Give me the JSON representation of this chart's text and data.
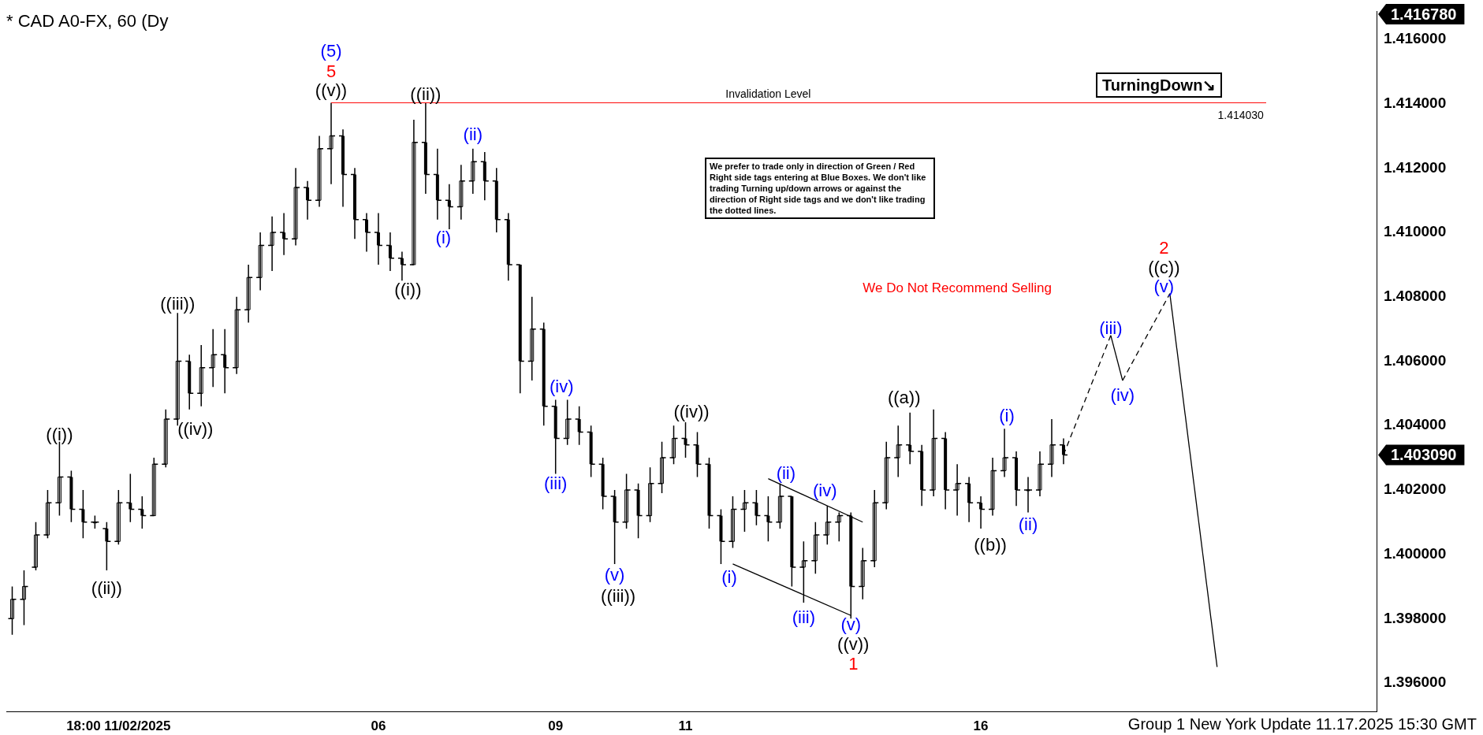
{
  "chart_data": {
    "type": "candlestick",
    "title": "* CAD A0-FX, 60 (Dy",
    "categories": [
      null,
      null,
      null,
      null,
      null,
      null,
      null,
      null,
      null,
      "18:00 11/02/2025",
      null,
      null,
      null,
      null,
      null,
      null,
      null,
      null,
      null,
      null,
      null,
      null,
      null,
      null,
      null,
      null,
      null,
      null,
      null,
      null,
      null,
      "06",
      null,
      null,
      null,
      null,
      null,
      null,
      null,
      null,
      null,
      null,
      null,
      null,
      null,
      null,
      "09",
      null,
      null,
      null,
      null,
      null,
      null,
      null,
      null,
      null,
      null,
      "11",
      null,
      null,
      null,
      null,
      null,
      null,
      null,
      null,
      null,
      null,
      null,
      null,
      null,
      null,
      null,
      null,
      null,
      null,
      null,
      null,
      null,
      null,
      null,
      null,
      "16",
      null,
      null,
      null,
      null,
      null,
      null,
      null,
      null,
      null,
      null,
      null,
      null,
      null,
      null,
      null,
      null,
      null,
      null,
      null,
      null,
      null,
      null,
      null,
      null,
      null,
      null,
      null,
      null,
      null,
      null,
      null,
      null,
      null
    ],
    "ohlc": [
      [
        1.398,
        1.399,
        1.3975,
        1.3986
      ],
      [
        1.3986,
        1.3995,
        1.3978,
        1.399
      ],
      [
        1.3996,
        1.401,
        1.3995,
        1.4006
      ],
      [
        1.4006,
        1.402,
        1.4005,
        1.4016
      ],
      [
        1.4016,
        1.4035,
        1.4012,
        1.4024
      ],
      [
        1.4024,
        1.4026,
        1.401,
        1.4014
      ],
      [
        1.4014,
        1.402,
        1.4005,
        1.401
      ],
      [
        1.401,
        1.4012,
        1.4008,
        1.401
      ],
      [
        1.4008,
        1.401,
        1.3995,
        1.4004
      ],
      [
        1.4004,
        1.402,
        1.4003,
        1.4016
      ],
      [
        1.4016,
        1.4025,
        1.401,
        1.4014
      ],
      [
        1.4014,
        1.4018,
        1.4008,
        1.4012
      ],
      [
        1.4012,
        1.403,
        1.4012,
        1.4028
      ],
      [
        1.4028,
        1.4045,
        1.4027,
        1.4042
      ],
      [
        1.4042,
        1.4075,
        1.404,
        1.406
      ],
      [
        1.406,
        1.4062,
        1.4045,
        1.405
      ],
      [
        1.405,
        1.4065,
        1.4046,
        1.4058
      ],
      [
        1.4058,
        1.407,
        1.4052,
        1.4062
      ],
      [
        1.4062,
        1.407,
        1.405,
        1.4058
      ],
      [
        1.4058,
        1.408,
        1.4056,
        1.4076
      ],
      [
        1.4076,
        1.409,
        1.4072,
        1.4086
      ],
      [
        1.4086,
        1.41,
        1.4082,
        1.4096
      ],
      [
        1.4096,
        1.4105,
        1.4088,
        1.41
      ],
      [
        1.41,
        1.4106,
        1.4093,
        1.4098
      ],
      [
        1.4098,
        1.412,
        1.4096,
        1.4114
      ],
      [
        1.4114,
        1.4116,
        1.4104,
        1.411
      ],
      [
        1.411,
        1.413,
        1.4108,
        1.4126
      ],
      [
        1.4126,
        1.41403,
        1.4115,
        1.413
      ],
      [
        1.413,
        1.4132,
        1.4108,
        1.4118
      ],
      [
        1.4118,
        1.412,
        1.4098,
        1.4104
      ],
      [
        1.4104,
        1.4106,
        1.4094,
        1.41
      ],
      [
        1.41,
        1.4106,
        1.409,
        1.4096
      ],
      [
        1.4096,
        1.41,
        1.4088,
        1.4092
      ],
      [
        1.4092,
        1.4094,
        1.4085,
        1.409
      ],
      [
        1.409,
        1.4135,
        1.409,
        1.4128
      ],
      [
        1.4128,
        1.41403,
        1.4112,
        1.4118
      ],
      [
        1.4118,
        1.4126,
        1.4104,
        1.411
      ],
      [
        1.411,
        1.4115,
        1.4101,
        1.4108
      ],
      [
        1.4108,
        1.4121,
        1.4104,
        1.4116
      ],
      [
        1.4116,
        1.4126,
        1.4112,
        1.4122
      ],
      [
        1.4122,
        1.4125,
        1.411,
        1.4116
      ],
      [
        1.4116,
        1.412,
        1.41,
        1.4104
      ],
      [
        1.4104,
        1.4106,
        1.4085,
        1.409
      ],
      [
        1.409,
        1.409,
        1.405,
        1.406
      ],
      [
        1.406,
        1.408,
        1.4054,
        1.407
      ],
      [
        1.407,
        1.4072,
        1.404,
        1.4046
      ],
      [
        1.4046,
        1.4048,
        1.4025,
        1.4036
      ],
      [
        1.4036,
        1.4048,
        1.4034,
        1.4042
      ],
      [
        1.4042,
        1.4046,
        1.4034,
        1.4038
      ],
      [
        1.4038,
        1.404,
        1.4024,
        1.4028
      ],
      [
        1.4028,
        1.403,
        1.4014,
        1.4018
      ],
      [
        1.4018,
        1.402,
        1.3997,
        1.401
      ],
      [
        1.401,
        1.4025,
        1.4008,
        1.402
      ],
      [
        1.402,
        1.4022,
        1.4005,
        1.4012
      ],
      [
        1.4012,
        1.4027,
        1.401,
        1.4022
      ],
      [
        1.4022,
        1.4035,
        1.4019,
        1.403
      ],
      [
        1.403,
        1.404,
        1.4028,
        1.4036
      ],
      [
        1.4036,
        1.4041,
        1.403,
        1.4034
      ],
      [
        1.4034,
        1.4038,
        1.4024,
        1.4028
      ],
      [
        1.4028,
        1.403,
        1.4008,
        1.4012
      ],
      [
        1.4012,
        1.4014,
        1.3997,
        1.4004
      ],
      [
        1.4004,
        1.4018,
        1.4002,
        1.4014
      ],
      [
        1.4014,
        1.402,
        1.4007,
        1.4016
      ],
      [
        1.4016,
        1.402,
        1.4009,
        1.4012
      ],
      [
        1.4012,
        1.4018,
        1.4004,
        1.401
      ],
      [
        1.401,
        1.4022,
        1.4008,
        1.4018
      ],
      [
        1.4018,
        1.4018,
        1.399,
        1.3996
      ],
      [
        1.3996,
        1.4004,
        1.3985,
        1.3998
      ],
      [
        1.3998,
        1.401,
        1.3994,
        1.4006
      ],
      [
        1.4006,
        1.4015,
        1.4003,
        1.401
      ],
      [
        1.401,
        1.4013,
        1.4004,
        1.4012
      ],
      [
        1.4012,
        1.4013,
        1.398,
        1.399
      ],
      [
        1.399,
        1.4002,
        1.3986,
        1.3998
      ],
      [
        1.3998,
        1.402,
        1.3996,
        1.4016
      ],
      [
        1.4016,
        1.4035,
        1.4014,
        1.403
      ],
      [
        1.403,
        1.404,
        1.4024,
        1.4034
      ],
      [
        1.4034,
        1.4044,
        1.4028,
        1.4032
      ],
      [
        1.4032,
        1.4034,
        1.4015,
        1.402
      ],
      [
        1.402,
        1.4045,
        1.4018,
        1.4036
      ],
      [
        1.4036,
        1.4038,
        1.4014,
        1.402
      ],
      [
        1.402,
        1.4028,
        1.4012,
        1.4022
      ],
      [
        1.4022,
        1.4024,
        1.401,
        1.4016
      ],
      [
        1.4016,
        1.4018,
        1.4008,
        1.4014
      ],
      [
        1.4014,
        1.403,
        1.4012,
        1.4026
      ],
      [
        1.4026,
        1.4039,
        1.4024,
        1.403
      ],
      [
        1.403,
        1.4032,
        1.4015,
        1.402
      ],
      [
        1.402,
        1.4024,
        1.4013,
        1.402
      ],
      [
        1.402,
        1.4032,
        1.4018,
        1.4028
      ],
      [
        1.4028,
        1.4042,
        1.4024,
        1.4034
      ],
      [
        1.4034,
        1.4036,
        1.4028,
        1.40309
      ],
      null,
      null,
      null,
      null,
      null,
      null,
      null,
      null,
      null,
      null,
      null,
      null,
      null,
      null,
      null,
      null,
      null,
      null,
      null,
      null,
      null,
      null,
      null,
      null,
      null,
      null
    ],
    "series": [
      {
        "type": "line",
        "color": "#000000",
        "line_style": "dashed",
        "values": [
          null,
          null,
          null,
          null,
          null,
          null,
          null,
          null,
          null,
          null,
          null,
          null,
          null,
          null,
          null,
          null,
          null,
          null,
          null,
          null,
          null,
          null,
          null,
          null,
          null,
          null,
          null,
          null,
          null,
          null,
          null,
          null,
          null,
          null,
          null,
          null,
          null,
          null,
          null,
          null,
          null,
          null,
          null,
          null,
          null,
          null,
          null,
          null,
          null,
          null,
          null,
          null,
          null,
          null,
          null,
          null,
          null,
          null,
          null,
          null,
          null,
          null,
          null,
          null,
          null,
          null,
          null,
          null,
          null,
          null,
          null,
          null,
          null,
          null,
          null,
          null,
          null,
          null,
          null,
          null,
          null,
          null,
          null,
          null,
          null,
          null,
          null,
          null,
          null,
          1.40309,
          null,
          null,
          null,
          1.4068,
          null,
          null,
          null,
          null,
          null,
          null,
          null,
          null,
          null,
          null,
          null,
          null,
          null,
          null,
          null,
          null,
          null,
          null,
          null,
          null,
          null,
          null
        ]
      },
      {
        "type": "line",
        "color": "#000000",
        "line_style": "solid",
        "values": [
          null,
          null,
          null,
          null,
          null,
          null,
          null,
          null,
          null,
          null,
          null,
          null,
          null,
          null,
          null,
          null,
          null,
          null,
          null,
          null,
          null,
          null,
          null,
          null,
          null,
          null,
          null,
          null,
          null,
          null,
          null,
          null,
          null,
          null,
          null,
          null,
          null,
          null,
          null,
          null,
          null,
          null,
          null,
          null,
          null,
          null,
          null,
          null,
          null,
          null,
          null,
          null,
          null,
          null,
          null,
          null,
          null,
          null,
          null,
          null,
          null,
          null,
          null,
          null,
          null,
          null,
          null,
          null,
          null,
          null,
          null,
          null,
          null,
          null,
          null,
          null,
          null,
          null,
          null,
          null,
          null,
          null,
          null,
          null,
          null,
          null,
          null,
          null,
          null,
          null,
          null,
          null,
          null,
          1.4068,
          1.4054,
          null,
          null,
          null,
          null,
          null,
          null,
          null,
          null,
          null,
          null,
          null,
          null,
          null,
          null,
          null,
          null,
          null,
          null,
          null,
          null,
          null
        ]
      },
      {
        "type": "line",
        "color": "#000000",
        "line_style": "dashed",
        "values": [
          null,
          null,
          null,
          null,
          null,
          null,
          null,
          null,
          null,
          null,
          null,
          null,
          null,
          null,
          null,
          null,
          null,
          null,
          null,
          null,
          null,
          null,
          null,
          null,
          null,
          null,
          null,
          null,
          null,
          null,
          null,
          null,
          null,
          null,
          null,
          null,
          null,
          null,
          null,
          null,
          null,
          null,
          null,
          null,
          null,
          null,
          null,
          null,
          null,
          null,
          null,
          null,
          null,
          null,
          null,
          null,
          null,
          null,
          null,
          null,
          null,
          null,
          null,
          null,
          null,
          null,
          null,
          null,
          null,
          null,
          null,
          null,
          null,
          null,
          null,
          null,
          null,
          null,
          null,
          null,
          null,
          null,
          null,
          null,
          null,
          null,
          null,
          null,
          null,
          null,
          null,
          null,
          null,
          null,
          1.4054,
          null,
          null,
          null,
          1.4081,
          null,
          null,
          null,
          null,
          null,
          null,
          null,
          null,
          null,
          null,
          null,
          null,
          null,
          null,
          null,
          null,
          null
        ]
      },
      {
        "type": "line",
        "color": "#000000",
        "line_style": "solid",
        "values": [
          null,
          null,
          null,
          null,
          null,
          null,
          null,
          null,
          null,
          null,
          null,
          null,
          null,
          null,
          null,
          null,
          null,
          null,
          null,
          null,
          null,
          null,
          null,
          null,
          null,
          null,
          null,
          null,
          null,
          null,
          null,
          null,
          null,
          null,
          null,
          null,
          null,
          null,
          null,
          null,
          null,
          null,
          null,
          null,
          null,
          null,
          null,
          null,
          null,
          null,
          null,
          null,
          null,
          null,
          null,
          null,
          null,
          null,
          null,
          null,
          null,
          null,
          null,
          null,
          null,
          null,
          null,
          null,
          null,
          null,
          null,
          null,
          null,
          null,
          null,
          null,
          null,
          null,
          null,
          null,
          null,
          null,
          null,
          null,
          null,
          null,
          null,
          null,
          null,
          null,
          null,
          null,
          null,
          null,
          null,
          null,
          null,
          null,
          1.4081,
          null,
          null,
          null,
          1.3965,
          null,
          null,
          null,
          null,
          null,
          null,
          null,
          null,
          null,
          null,
          null,
          null,
          null
        ]
      },
      {
        "type": "line",
        "color": "#000000",
        "line_style": "solid",
        "values": [
          null,
          null,
          null,
          null,
          null,
          null,
          null,
          null,
          null,
          null,
          null,
          null,
          null,
          null,
          null,
          null,
          null,
          null,
          null,
          null,
          null,
          null,
          null,
          null,
          null,
          null,
          null,
          null,
          null,
          null,
          null,
          null,
          null,
          null,
          null,
          null,
          null,
          null,
          null,
          null,
          null,
          null,
          null,
          null,
          null,
          null,
          null,
          null,
          null,
          null,
          null,
          null,
          null,
          null,
          null,
          null,
          null,
          null,
          null,
          null,
          null,
          null,
          null,
          null,
          1.40235,
          null,
          null,
          null,
          null,
          null,
          null,
          null,
          1.401,
          null,
          null,
          null,
          null,
          null,
          null,
          null,
          null,
          null,
          null,
          null,
          null,
          null,
          null,
          null,
          null,
          null,
          null,
          null,
          null,
          null,
          null,
          null,
          null,
          null,
          null,
          null,
          null,
          null,
          null,
          null,
          null,
          null,
          null,
          null,
          null,
          null,
          null,
          null,
          null,
          null,
          null,
          null
        ]
      },
      {
        "type": "line",
        "color": "#000000",
        "line_style": "solid",
        "values": [
          null,
          null,
          null,
          null,
          null,
          null,
          null,
          null,
          null,
          null,
          null,
          null,
          null,
          null,
          null,
          null,
          null,
          null,
          null,
          null,
          null,
          null,
          null,
          null,
          null,
          null,
          null,
          null,
          null,
          null,
          null,
          null,
          null,
          null,
          null,
          null,
          null,
          null,
          null,
          null,
          null,
          null,
          null,
          null,
          null,
          null,
          null,
          null,
          null,
          null,
          null,
          null,
          null,
          null,
          null,
          null,
          null,
          null,
          null,
          null,
          null,
          1.3997,
          null,
          null,
          null,
          null,
          null,
          null,
          null,
          null,
          null,
          1.3981,
          null,
          null,
          null,
          null,
          null,
          null,
          null,
          null,
          null,
          null,
          null,
          null,
          null,
          null,
          null,
          null,
          null,
          null,
          null,
          null,
          null,
          null,
          null,
          null,
          null,
          null,
          null,
          null,
          null,
          null,
          null,
          null,
          null,
          null,
          null,
          null,
          null,
          null,
          null,
          null,
          null,
          null,
          null,
          null
        ]
      }
    ],
    "ylim": [
      1.39512,
      1.41687
    ],
    "yticks": [
      {
        "value": 1.396,
        "label": "1.396000"
      },
      {
        "value": 1.398,
        "label": "1.398000"
      },
      {
        "value": 1.4,
        "label": "1.400000"
      },
      {
        "value": 1.402,
        "label": "1.402000"
      },
      {
        "value": 1.404,
        "label": "1.404000"
      },
      {
        "value": 1.406,
        "label": "1.406000"
      },
      {
        "value": 1.408,
        "label": "1.408000"
      },
      {
        "value": 1.41,
        "label": "1.410000"
      },
      {
        "value": 1.412,
        "label": "1.412000"
      },
      {
        "value": 1.414,
        "label": "1.414000"
      },
      {
        "value": 1.416,
        "label": "1.416000"
      }
    ],
    "ref_lines": [
      {
        "axis": "y",
        "value": 1.41403,
        "label": "Invalidation Level",
        "color": "#ff0000"
      }
    ],
    "grid": false,
    "legend": false,
    "annotations": [
      "We prefer to trade only in direction of Green / Red Right side tags entering at Blue Boxes. We don't like trading Turning up/down arrows or against the direction of Right side tags and we don't like trading the dotted lines.",
      "TurningDown↘",
      "Group 1 New York Update 11.17.2025 15:30 GMT",
      "1.414030",
      "1.403090",
      "1.416780",
      "We Do Not Recommend Selling",
      "((i))",
      "((ii))",
      "((iii))",
      "((iv))",
      "((v))",
      "5",
      "(5)",
      "((ii))",
      "((i))",
      "(i)",
      "(ii)",
      "(iii)",
      "(iv)",
      "(v)",
      "((iii))",
      "((iv))",
      "(i)",
      "(ii)",
      "(iii)",
      "(iv)",
      "(v)",
      "((v))",
      "1",
      "((a))",
      "((b))",
      "(i)",
      "(ii)",
      "(iii)",
      "(iv)",
      "(v)",
      "((c))",
      "2"
    ]
  }
}
